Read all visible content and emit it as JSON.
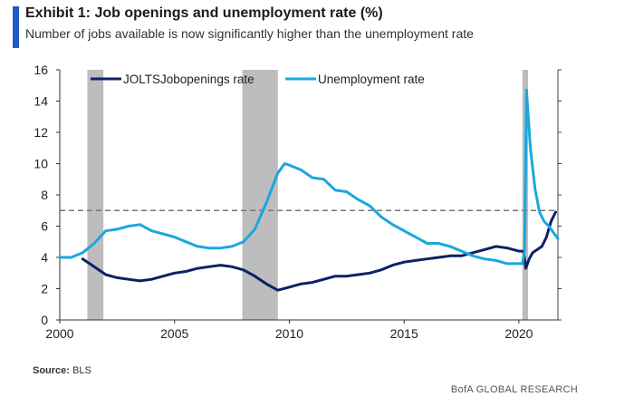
{
  "header": {
    "title": "Exhibit 1: Job openings and unemployment rate (%)",
    "subtitle": "Number of jobs available is now significantly higher than the unemployment rate",
    "accent_color": "#1f5bc4"
  },
  "footer": {
    "source_label": "Source:",
    "source_value": "BLS",
    "brand": "BofA GLOBAL RESEARCH"
  },
  "chart_data": {
    "type": "line",
    "title": "Exhibit 1: Job openings and unemployment rate (%)",
    "xlabel": "",
    "ylabel": "",
    "xlim": [
      2000,
      2021.7
    ],
    "ylim": [
      0,
      16
    ],
    "y_ticks": [
      0,
      2,
      4,
      6,
      8,
      10,
      12,
      14,
      16
    ],
    "y_tick_labels": [
      "0",
      "2",
      "4",
      "6",
      "8",
      "10",
      "12",
      "14",
      "16"
    ],
    "x_ticks": [
      2000,
      2005,
      2010,
      2015,
      2020
    ],
    "x_tick_labels": [
      "2000",
      "2005",
      "2010",
      "2015",
      "2020"
    ],
    "grid": false,
    "legend_position": "top",
    "reference_line": {
      "value": 7.0,
      "style": "dashed",
      "color": "#777777"
    },
    "recessions": [
      {
        "start": 2001.2,
        "end": 2001.9
      },
      {
        "start": 2007.95,
        "end": 2009.5
      },
      {
        "start": 2020.15,
        "end": 2020.4
      }
    ],
    "series": [
      {
        "name": "JOLTSJobopenings rate",
        "color": "#0b2265",
        "x": [
          2001.0,
          2001.5,
          2002.0,
          2002.5,
          2003.0,
          2003.5,
          2004.0,
          2004.5,
          2005.0,
          2005.5,
          2006.0,
          2006.5,
          2007.0,
          2007.5,
          2008.0,
          2008.5,
          2009.0,
          2009.5,
          2010.0,
          2010.5,
          2011.0,
          2011.5,
          2012.0,
          2012.5,
          2013.0,
          2013.5,
          2014.0,
          2014.5,
          2015.0,
          2015.5,
          2016.0,
          2016.5,
          2017.0,
          2017.5,
          2018.0,
          2018.5,
          2019.0,
          2019.5,
          2020.0,
          2020.2,
          2020.3,
          2020.45,
          2020.6,
          2020.8,
          2021.0,
          2021.2,
          2021.4,
          2021.6
        ],
        "values": [
          3.9,
          3.4,
          2.9,
          2.7,
          2.6,
          2.5,
          2.6,
          2.8,
          3.0,
          3.1,
          3.3,
          3.4,
          3.5,
          3.4,
          3.2,
          2.8,
          2.3,
          1.9,
          2.1,
          2.3,
          2.4,
          2.6,
          2.8,
          2.8,
          2.9,
          3.0,
          3.2,
          3.5,
          3.7,
          3.8,
          3.9,
          4.0,
          4.1,
          4.1,
          4.3,
          4.5,
          4.7,
          4.6,
          4.4,
          4.4,
          3.3,
          3.9,
          4.3,
          4.5,
          4.7,
          5.3,
          6.3,
          6.9
        ]
      },
      {
        "name": "Unemployment  rate",
        "color": "#1aa7df",
        "x": [
          2000.0,
          2000.5,
          2001.0,
          2001.5,
          2002.0,
          2002.5,
          2003.0,
          2003.5,
          2004.0,
          2004.5,
          2005.0,
          2005.5,
          2006.0,
          2006.5,
          2007.0,
          2007.5,
          2008.0,
          2008.5,
          2009.0,
          2009.5,
          2009.8,
          2010.0,
          2010.5,
          2011.0,
          2011.5,
          2012.0,
          2012.5,
          2013.0,
          2013.5,
          2014.0,
          2014.5,
          2015.0,
          2015.5,
          2016.0,
          2016.5,
          2017.0,
          2017.5,
          2018.0,
          2018.5,
          2019.0,
          2019.5,
          2020.0,
          2020.15,
          2020.25,
          2020.33,
          2020.5,
          2020.7,
          2020.9,
          2021.1,
          2021.3,
          2021.5,
          2021.7
        ],
        "values": [
          4.0,
          4.0,
          4.3,
          4.9,
          5.7,
          5.8,
          6.0,
          6.1,
          5.7,
          5.5,
          5.3,
          5.0,
          4.7,
          4.6,
          4.6,
          4.7,
          5.0,
          5.8,
          7.5,
          9.4,
          10.0,
          9.9,
          9.6,
          9.1,
          9.0,
          8.3,
          8.2,
          7.7,
          7.3,
          6.6,
          6.1,
          5.7,
          5.3,
          4.9,
          4.9,
          4.7,
          4.4,
          4.1,
          3.9,
          3.8,
          3.6,
          3.6,
          3.6,
          4.4,
          14.7,
          11.0,
          8.4,
          6.9,
          6.3,
          6.0,
          5.6,
          5.2
        ]
      }
    ]
  }
}
